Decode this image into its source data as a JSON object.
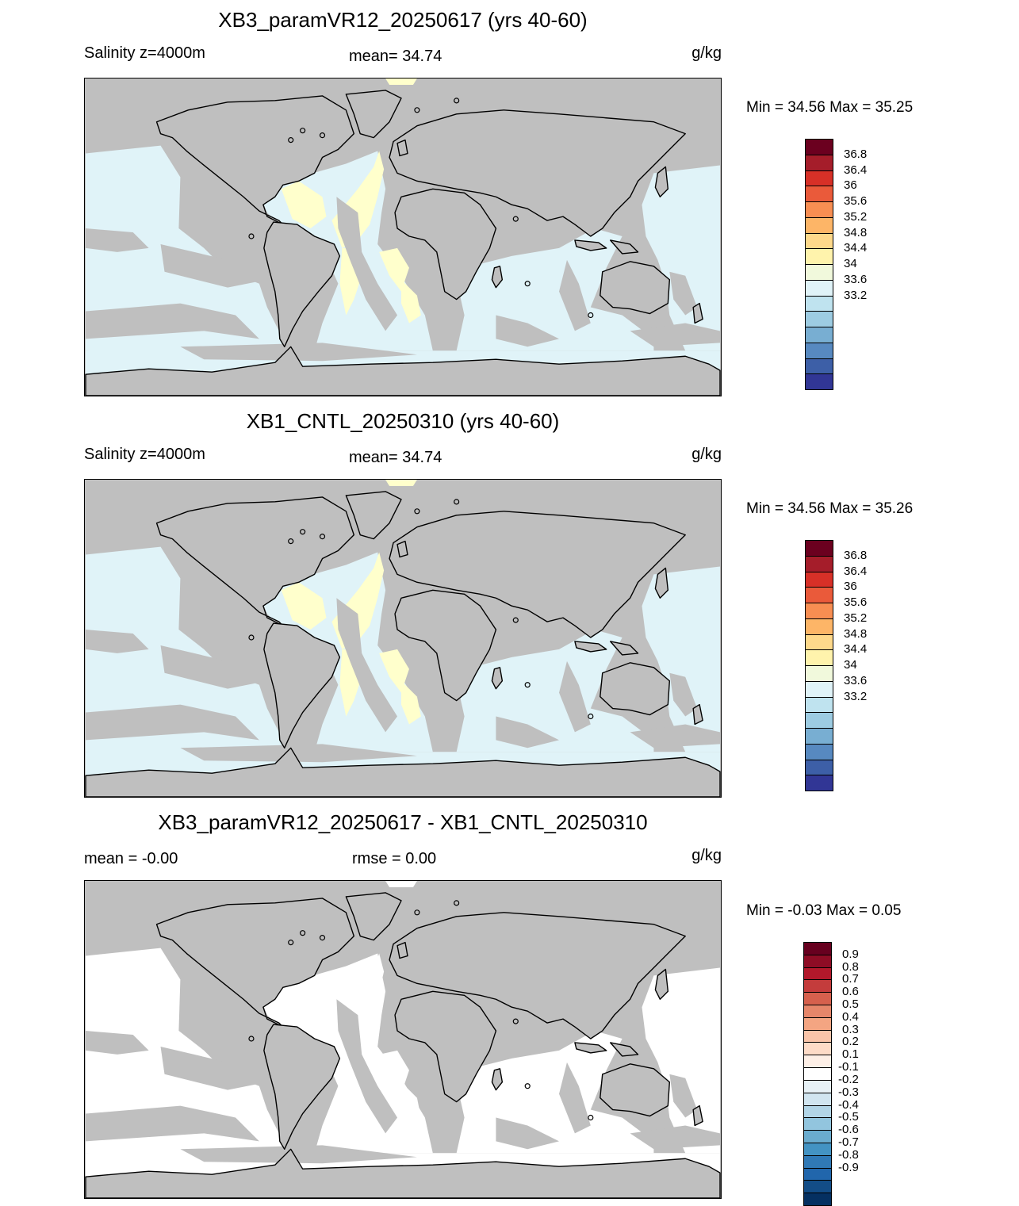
{
  "units": "g/kg",
  "panels": [
    {
      "id": "exp",
      "title": "XB3_paramVR12_20250617 (yrs 40-60)",
      "sub_left": "Salinity z=4000m",
      "sub_mid": "mean=  34.74",
      "sub_right": "g/kg",
      "minmax": "Min =  34.56 Max =  35.25",
      "field_fill": "#e0f3f8",
      "high_fill": "#ffffcc"
    },
    {
      "id": "cntl",
      "title": "XB1_CNTL_20250310 (yrs 40-60)",
      "sub_left": "Salinity z=4000m",
      "sub_mid": "mean=  34.74",
      "sub_right": "g/kg",
      "minmax": "Min =  34.56 Max =  35.26",
      "field_fill": "#e0f3f8",
      "high_fill": "#ffffcc"
    },
    {
      "id": "diff",
      "title": "XB3_paramVR12_20250617 - XB1_CNTL_20250310",
      "sub_left": "mean =  -0.00",
      "sub_mid": "rmse =   0.00",
      "sub_right": "g/kg",
      "minmax": "Min =  -0.03 Max =   0.05",
      "field_fill": "#ffffff",
      "high_fill": "#ffffff"
    }
  ],
  "colorbars": {
    "salinity": {
      "colors": [
        "#6b001f",
        "#a51d2a",
        "#d73027",
        "#ea5a3a",
        "#f88e52",
        "#fdb567",
        "#fed98b",
        "#fff3ac",
        "#f1f9dc",
        "#e0f3f8",
        "#bfe3ef",
        "#9dcce2",
        "#78aed2",
        "#5789c0",
        "#3d5fa7",
        "#313695"
      ],
      "labels": [
        "36.8",
        "36.4",
        "36",
        "35.6",
        "35.2",
        "34.8",
        "34.4",
        "34",
        "33.6",
        "33.2"
      ]
    },
    "diff": {
      "colors": [
        "#67001f",
        "#8e0c25",
        "#b2182b",
        "#c43c3c",
        "#d6604d",
        "#e6866a",
        "#f4a582",
        "#f9c4a9",
        "#fddbc7",
        "#fdefe6",
        "#ffffff",
        "#e7f1f6",
        "#d1e5f0",
        "#b2d5e7",
        "#92c5de",
        "#6aaccf",
        "#4393c3",
        "#3079b6",
        "#2166ac",
        "#134d87",
        "#053061"
      ],
      "labels": [
        "0.9",
        "0.8",
        "0.7",
        "0.6",
        "0.5",
        "0.4",
        "0.3",
        "0.2",
        "0.1",
        "-0.1",
        "-0.2",
        "-0.3",
        "-0.4",
        "-0.5",
        "-0.6",
        "-0.7",
        "-0.8",
        "-0.9"
      ]
    }
  }
}
